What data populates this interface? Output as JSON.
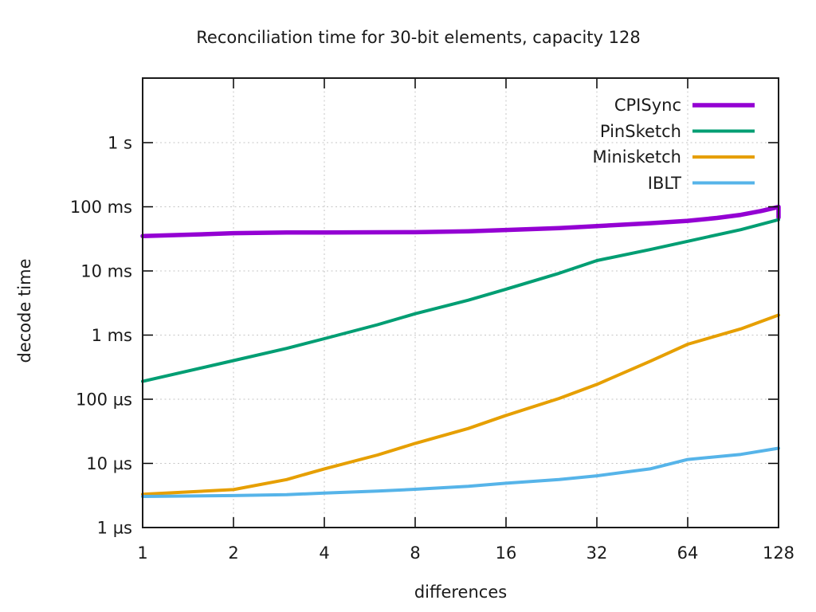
{
  "chart_data": {
    "type": "line",
    "title": "Reconciliation time for 30-bit elements, capacity 128",
    "xlabel": "differences",
    "ylabel": "decode time",
    "x_scale": "log2",
    "y_scale": "log10",
    "value_unit": "µs",
    "x_range": [
      1,
      128
    ],
    "y_range_us": [
      1,
      10000000
    ],
    "grid": true,
    "legend_position": "top-right",
    "x_ticks": [
      1,
      2,
      4,
      8,
      16,
      32,
      64,
      128
    ],
    "y_ticks": [
      {
        "label": "1 s",
        "us": 1000000
      },
      {
        "label": "100 ms",
        "us": 100000
      },
      {
        "label": "10 ms",
        "us": 10000
      },
      {
        "label": "1 ms",
        "us": 1000
      },
      {
        "label": "100 µs",
        "us": 100
      },
      {
        "label": "10 µs",
        "us": 10
      },
      {
        "label": "1 µs",
        "us": 1
      }
    ],
    "series": [
      {
        "name": "CPISync",
        "color": "#9400d3",
        "stroke_width": 5.5,
        "x": [
          1,
          1.5,
          2,
          3,
          4,
          6,
          8,
          12,
          16,
          24,
          32,
          48,
          64,
          80,
          96,
          112,
          124,
          128
        ],
        "values_us": [
          35000,
          37000,
          38800,
          39800,
          39800,
          40000,
          40200,
          41500,
          43500,
          46500,
          50000,
          55500,
          60500,
          67000,
          75000,
          86000,
          96000,
          100000
        ],
        "final_drop_us": 68000
      },
      {
        "name": "PinSketch",
        "color": "#009e73",
        "stroke_width": 4,
        "x": [
          1,
          2,
          3,
          4,
          6,
          8,
          12,
          16,
          24,
          32,
          48,
          64,
          96,
          128
        ],
        "values_us": [
          190,
          400,
          620,
          880,
          1450,
          2150,
          3500,
          5200,
          9200,
          14500,
          21500,
          29000,
          44000,
          63000
        ]
      },
      {
        "name": "Minisketch",
        "color": "#e69f00",
        "stroke_width": 4,
        "x": [
          1,
          2,
          3,
          4,
          6,
          8,
          12,
          16,
          24,
          32,
          48,
          64,
          96,
          128
        ],
        "values_us": [
          3.3,
          3.9,
          5.6,
          8.2,
          13.5,
          20.5,
          35,
          56,
          103,
          170,
          390,
          720,
          1250,
          2050
        ]
      },
      {
        "name": "IBLT",
        "color": "#56b4e9",
        "stroke_width": 4,
        "x": [
          1,
          2,
          3,
          4,
          6,
          8,
          12,
          16,
          24,
          32,
          48,
          64,
          96,
          128
        ],
        "values_us": [
          3.05,
          3.15,
          3.25,
          3.45,
          3.7,
          3.95,
          4.4,
          4.9,
          5.6,
          6.4,
          8.2,
          11.5,
          13.8,
          17.2
        ]
      }
    ]
  }
}
